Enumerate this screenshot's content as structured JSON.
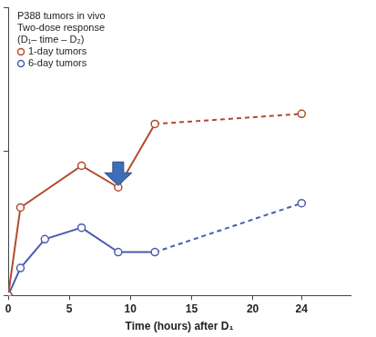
{
  "chart_data": {
    "type": "line",
    "title": "P388 tumors in vivo",
    "subtitle": [
      "Two-dose response",
      "(D₁– time – D₂)"
    ],
    "x_label": "Time (hours) after D₁",
    "xlim": [
      0,
      28
    ],
    "xticks": [
      0,
      5,
      10,
      15,
      20,
      24
    ],
    "ylim": [
      0,
      2
    ],
    "yticks": [
      0,
      1,
      2
    ],
    "tick_labels": "x",
    "grid": false,
    "legend": "upper left",
    "series": [
      {
        "name": "1-day tumors",
        "color": "#b04a2c",
        "marker": "circle",
        "x": [
          0,
          1,
          6,
          9,
          12,
          24
        ],
        "values": [
          0,
          0.61,
          0.9,
          0.75,
          1.19,
          1.26
        ]
      },
      {
        "name": "6-day tumors",
        "color": "#4a5cb0",
        "marker": "circle",
        "x": [
          0,
          1,
          3,
          6,
          9,
          12,
          24
        ],
        "values": [
          0,
          0.19,
          0.39,
          0.47,
          0.3,
          0.3,
          0.64
        ]
      }
    ]
  }
}
